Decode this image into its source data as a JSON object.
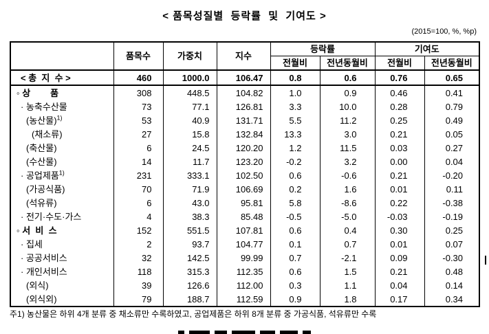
{
  "title": "< 품목성질별  등락률  및  기여도 >",
  "unit_note": "(2015=100, %, %p)",
  "table": {
    "col_headers": {
      "item_count": "품목수",
      "weight": "가중치",
      "index": "지수",
      "change_rate_group": "등락률",
      "contribution_group": "기여도",
      "mom": "전월비",
      "yoy": "전년동월비"
    },
    "rows": [
      {
        "label": "< 총  지  수 >",
        "indent": 14,
        "total": true,
        "bold": true,
        "values": [
          "460",
          "1000.0",
          "106.47",
          "0.8",
          "0.6",
          "0.76",
          "0.65"
        ]
      },
      {
        "label": "◦ 상        품",
        "indent": 8,
        "total": false,
        "bold": true,
        "values": [
          "308",
          "448.5",
          "104.82",
          "1.0",
          "0.9",
          "0.46",
          "0.41"
        ]
      },
      {
        "label": "· 농축수산물",
        "indent": 14,
        "total": false,
        "bold": false,
        "values": [
          "73",
          "77.1",
          "126.81",
          "3.3",
          "10.0",
          "0.28",
          "0.79"
        ]
      },
      {
        "label": "(농산물)",
        "sup": "1)",
        "indent": 22,
        "total": false,
        "bold": false,
        "values": [
          "53",
          "40.9",
          "131.71",
          "5.5",
          "11.2",
          "0.25",
          "0.49"
        ]
      },
      {
        "label": "(채소류)",
        "indent": 30,
        "total": false,
        "bold": false,
        "values": [
          "27",
          "15.8",
          "132.84",
          "13.3",
          "3.0",
          "0.21",
          "0.05"
        ]
      },
      {
        "label": "(축산물)",
        "indent": 22,
        "total": false,
        "bold": false,
        "values": [
          "6",
          "24.5",
          "120.20",
          "1.2",
          "11.5",
          "0.03",
          "0.27"
        ]
      },
      {
        "label": "(수산물)",
        "indent": 22,
        "total": false,
        "bold": false,
        "values": [
          "14",
          "11.7",
          "123.20",
          "-0.2",
          "3.2",
          "0.00",
          "0.04"
        ]
      },
      {
        "label": "· 공업제품",
        "sup": "1)",
        "indent": 14,
        "total": false,
        "bold": false,
        "values": [
          "231",
          "333.1",
          "102.50",
          "0.6",
          "-0.6",
          "0.21",
          "-0.20"
        ]
      },
      {
        "label": "(가공식품)",
        "indent": 22,
        "total": false,
        "bold": false,
        "values": [
          "70",
          "71.9",
          "106.69",
          "0.2",
          "1.6",
          "0.01",
          "0.11"
        ]
      },
      {
        "label": "(석유류)",
        "indent": 22,
        "total": false,
        "bold": false,
        "values": [
          "6",
          "43.0",
          "95.81",
          "5.8",
          "-8.6",
          "0.22",
          "-0.38"
        ]
      },
      {
        "label": "· 전기·수도·가스",
        "indent": 14,
        "total": false,
        "bold": false,
        "values": [
          "4",
          "38.3",
          "85.48",
          "-0.5",
          "-5.0",
          "-0.03",
          "-0.19"
        ]
      },
      {
        "label": "◦ 서  비  스",
        "indent": 8,
        "total": false,
        "bold": true,
        "values": [
          "152",
          "551.5",
          "107.81",
          "0.6",
          "0.4",
          "0.30",
          "0.25"
        ]
      },
      {
        "label": "· 집세",
        "indent": 14,
        "total": false,
        "bold": false,
        "values": [
          "2",
          "93.7",
          "104.77",
          "0.1",
          "0.7",
          "0.01",
          "0.07"
        ]
      },
      {
        "label": "· 공공서비스",
        "indent": 14,
        "total": false,
        "bold": false,
        "values": [
          "32",
          "142.5",
          "99.99",
          "0.7",
          "-2.1",
          "0.09",
          "-0.30"
        ]
      },
      {
        "label": "· 개인서비스",
        "indent": 14,
        "total": false,
        "bold": false,
        "values": [
          "118",
          "315.3",
          "112.35",
          "0.6",
          "1.5",
          "0.21",
          "0.48"
        ]
      },
      {
        "label": "(외식)",
        "indent": 22,
        "total": false,
        "bold": false,
        "values": [
          "39",
          "126.6",
          "112.00",
          "0.3",
          "1.1",
          "0.04",
          "0.14"
        ]
      },
      {
        "label": "(외식외)",
        "indent": 22,
        "total": false,
        "bold": false,
        "values": [
          "79",
          "188.7",
          "112.59",
          "0.9",
          "1.8",
          "0.17",
          "0.34"
        ]
      }
    ]
  },
  "footnote": "주1) 농산물은 하위 4개 분류 중 채소류만 수록하였고, 공업제품은 하위 8개 분류 중 가공식품, 석유류만 수록"
}
